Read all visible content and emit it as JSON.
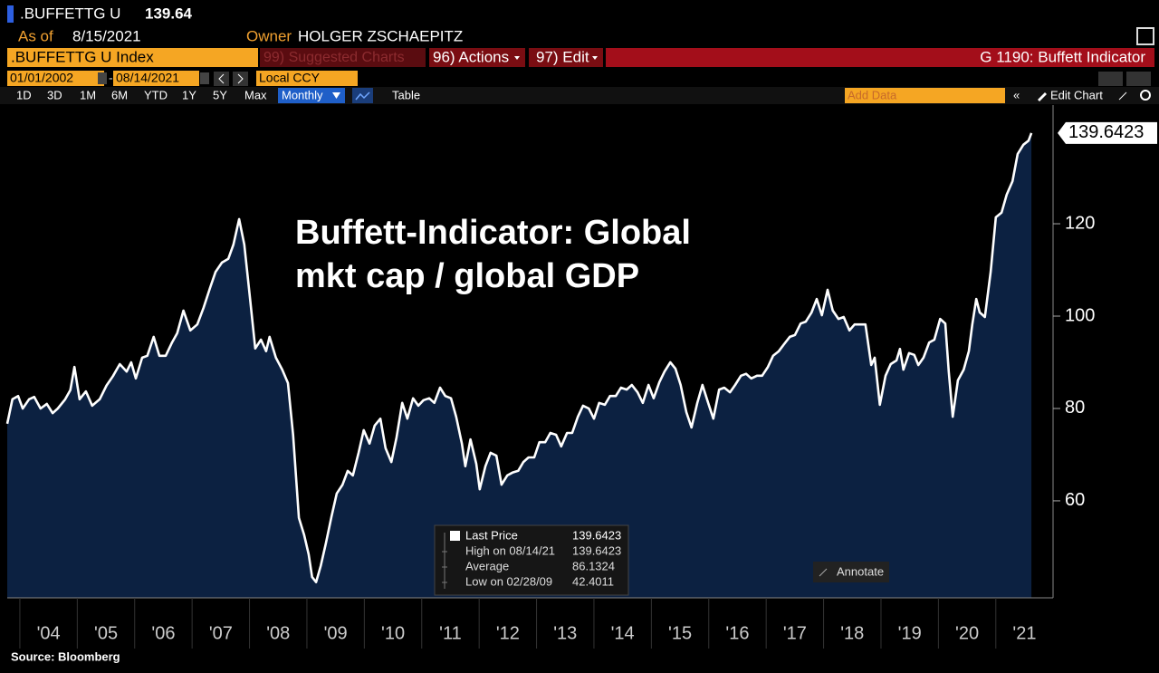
{
  "header": {
    "ticker": ".BUFFETTG U",
    "price": "139.64",
    "as_of_label": "As of",
    "as_of": "8/15/2021",
    "owner_label": "Owner",
    "owner": "HOLGER ZSCHAEPITZ",
    "security": ".BUFFETTG U Index",
    "suggested": "99) Suggested Charts",
    "actions": "96) Actions",
    "edit": "97) Edit",
    "function": "G 1190: Buffett Indicator",
    "start_date": "01/01/2002",
    "end_date": "08/14/2021",
    "currency": "Local CCY",
    "periods": [
      "1D",
      "3D",
      "1M",
      "6M",
      "YTD",
      "1Y",
      "5Y",
      "Max"
    ],
    "frequency": "Monthly",
    "table": "Table",
    "add_data": "Add Data",
    "edit_chart": "Edit Chart"
  },
  "chart_data": {
    "type": "area",
    "annotation": [
      "Buffett-Indicator: Global",
      "mkt cap / global GDP"
    ],
    "series": [
      {
        "name": "Last Price",
        "color": "#ffffff",
        "fill": "#0c2141",
        "x": [
          2003.78,
          2003.87,
          2003.97,
          2004.05,
          2004.16,
          2004.25,
          2004.36,
          2004.47,
          2004.57,
          2004.66,
          2004.79,
          2004.88,
          2004.95,
          2005.04,
          2005.15,
          2005.26,
          2005.39,
          2005.51,
          2005.62,
          2005.74,
          2005.86,
          2005.94,
          2006.02,
          2006.13,
          2006.22,
          2006.33,
          2006.43,
          2006.54,
          2006.65,
          2006.74,
          2006.85,
          2006.97,
          2007.09,
          2007.2,
          2007.31,
          2007.41,
          2007.52,
          2007.63,
          2007.72,
          2007.82,
          2007.91,
          2008.01,
          2008.1,
          2008.2,
          2008.29,
          2008.35,
          2008.46,
          2008.57,
          2008.67,
          2008.76,
          2008.86,
          2008.95,
          2009.03,
          2009.09,
          2009.16,
          2009.24,
          2009.33,
          2009.43,
          2009.52,
          2009.62,
          2009.71,
          2009.8,
          2009.9,
          2009.99,
          2010.09,
          2010.18,
          2010.28,
          2010.37,
          2010.47,
          2010.56,
          2010.66,
          2010.75,
          2010.85,
          2010.94,
          2011.03,
          2011.13,
          2011.22,
          2011.32,
          2011.41,
          2011.51,
          2011.6,
          2011.7,
          2011.76,
          2011.85,
          2011.95,
          2012.01,
          2012.11,
          2012.2,
          2012.3,
          2012.39,
          2012.49,
          2012.58,
          2012.68,
          2012.77,
          2012.86,
          2012.96,
          2013.05,
          2013.15,
          2013.24,
          2013.34,
          2013.43,
          2013.53,
          2013.62,
          2013.72,
          2013.81,
          2013.91,
          2014.0,
          2014.09,
          2014.19,
          2014.28,
          2014.38,
          2014.47,
          2014.57,
          2014.66,
          2014.76,
          2014.85,
          2014.95,
          2015.04,
          2015.14,
          2015.23,
          2015.33,
          2015.42,
          2015.51,
          2015.61,
          2015.7,
          2015.8,
          2015.89,
          2015.99,
          2016.08,
          2016.18,
          2016.27,
          2016.37,
          2016.46,
          2016.56,
          2016.65,
          2016.74,
          2016.84,
          2016.93,
          2017.03,
          2017.12,
          2017.22,
          2017.31,
          2017.41,
          2017.5,
          2017.6,
          2017.69,
          2017.79,
          2017.88,
          2017.97,
          2018.07,
          2018.16,
          2018.26,
          2018.35,
          2018.45,
          2018.54,
          2018.64,
          2018.73,
          2018.83,
          2018.89,
          2018.98,
          2019.08,
          2019.17,
          2019.27,
          2019.33,
          2019.39,
          2019.49,
          2019.58,
          2019.65,
          2019.74,
          2019.84,
          2019.93,
          2020.03,
          2020.12,
          2020.18,
          2020.25,
          2020.34,
          2020.44,
          2020.53,
          2020.59,
          2020.66,
          2020.72,
          2020.81,
          2020.91,
          2021.0,
          2021.1,
          2021.19,
          2021.29,
          2021.38,
          2021.48,
          2021.57,
          2021.62
        ],
        "values": [
          76.7,
          82,
          82.7,
          80,
          82,
          82.5,
          80,
          81,
          79,
          80,
          82,
          84,
          89,
          82,
          83.7,
          80.6,
          82,
          85,
          87,
          89.6,
          88,
          90,
          86.5,
          91,
          91.4,
          95.5,
          91.4,
          91.4,
          94.3,
          96.3,
          101.2,
          96.9,
          98.2,
          101.8,
          106,
          109.6,
          111.6,
          112.4,
          115.5,
          121,
          115.5,
          103.7,
          93,
          94.9,
          92.4,
          95.5,
          91,
          88.4,
          85.5,
          74.3,
          56.3,
          52.7,
          48.4,
          43.5,
          42.4011,
          45.9,
          50.8,
          56.7,
          61.6,
          63.5,
          66.5,
          65.5,
          70.4,
          75.3,
          72.4,
          76.3,
          77.8,
          71.4,
          68.4,
          73.7,
          81.2,
          77.8,
          82.2,
          80.6,
          81.8,
          82.2,
          81.2,
          84.5,
          82.7,
          82.2,
          78.2,
          72.4,
          67.5,
          73.3,
          68,
          62.5,
          67.5,
          70.4,
          69.8,
          63.5,
          65.5,
          66.1,
          66.5,
          68.4,
          69.4,
          69.4,
          72.7,
          72.7,
          74.7,
          74.3,
          71.8,
          74.7,
          74.7,
          78.2,
          80.6,
          80,
          77.8,
          81.2,
          80.8,
          82.7,
          82.7,
          84.5,
          84.1,
          85.1,
          83.5,
          81.2,
          85.1,
          82.2,
          85.7,
          88,
          90,
          88.6,
          85.1,
          79.2,
          75.9,
          81.2,
          85.1,
          81.2,
          77.8,
          84.1,
          84.5,
          83.5,
          85.1,
          87.1,
          87.5,
          86.5,
          87.1,
          87.1,
          89,
          91.4,
          92.4,
          93.9,
          95.5,
          95.9,
          98.4,
          98.8,
          100.8,
          103.7,
          100.2,
          105.7,
          101.2,
          99.4,
          99.8,
          96.9,
          98.2,
          98.2,
          98.2,
          89.4,
          91,
          80.8,
          87.1,
          89.6,
          90.4,
          92.9,
          88.4,
          92,
          91.6,
          89.4,
          91,
          94.3,
          94.9,
          99.4,
          98.4,
          88,
          78.2,
          86.1,
          88.4,
          92.4,
          98.2,
          103.7,
          100.8,
          99.8,
          109.6,
          121.4,
          122.4,
          126.3,
          129.2,
          135.1,
          137.1,
          138,
          139.6423
        ]
      }
    ],
    "stats": {
      "high_label": "High on 08/14/21",
      "average_label": "Average",
      "average": 86.1324,
      "low_label": "Low on 02/28/09"
    },
    "annotate": "Annotate",
    "xlim": [
      2003.78,
      2021.95
    ],
    "ylim": [
      39,
      145.7
    ],
    "xticks": [
      {
        "value": 2004,
        "label": "'04"
      },
      {
        "value": 2005,
        "label": "'05"
      },
      {
        "value": 2006,
        "label": "'06"
      },
      {
        "value": 2007,
        "label": "'07"
      },
      {
        "value": 2008,
        "label": "'08"
      },
      {
        "value": 2009,
        "label": "'09"
      },
      {
        "value": 2010,
        "label": "'10"
      },
      {
        "value": 2011,
        "label": "'11"
      },
      {
        "value": 2012,
        "label": "'12"
      },
      {
        "value": 2013,
        "label": "'13"
      },
      {
        "value": 2014,
        "label": "'14"
      },
      {
        "value": 2015,
        "label": "'15"
      },
      {
        "value": 2016,
        "label": "'16"
      },
      {
        "value": 2017,
        "label": "'17"
      },
      {
        "value": 2018,
        "label": "'18"
      },
      {
        "value": 2019,
        "label": "'19"
      },
      {
        "value": 2020,
        "label": "'20"
      },
      {
        "value": 2021,
        "label": "'21"
      }
    ],
    "yticks": [
      60,
      80,
      100,
      120
    ],
    "source": "Source:  Bloomberg"
  }
}
